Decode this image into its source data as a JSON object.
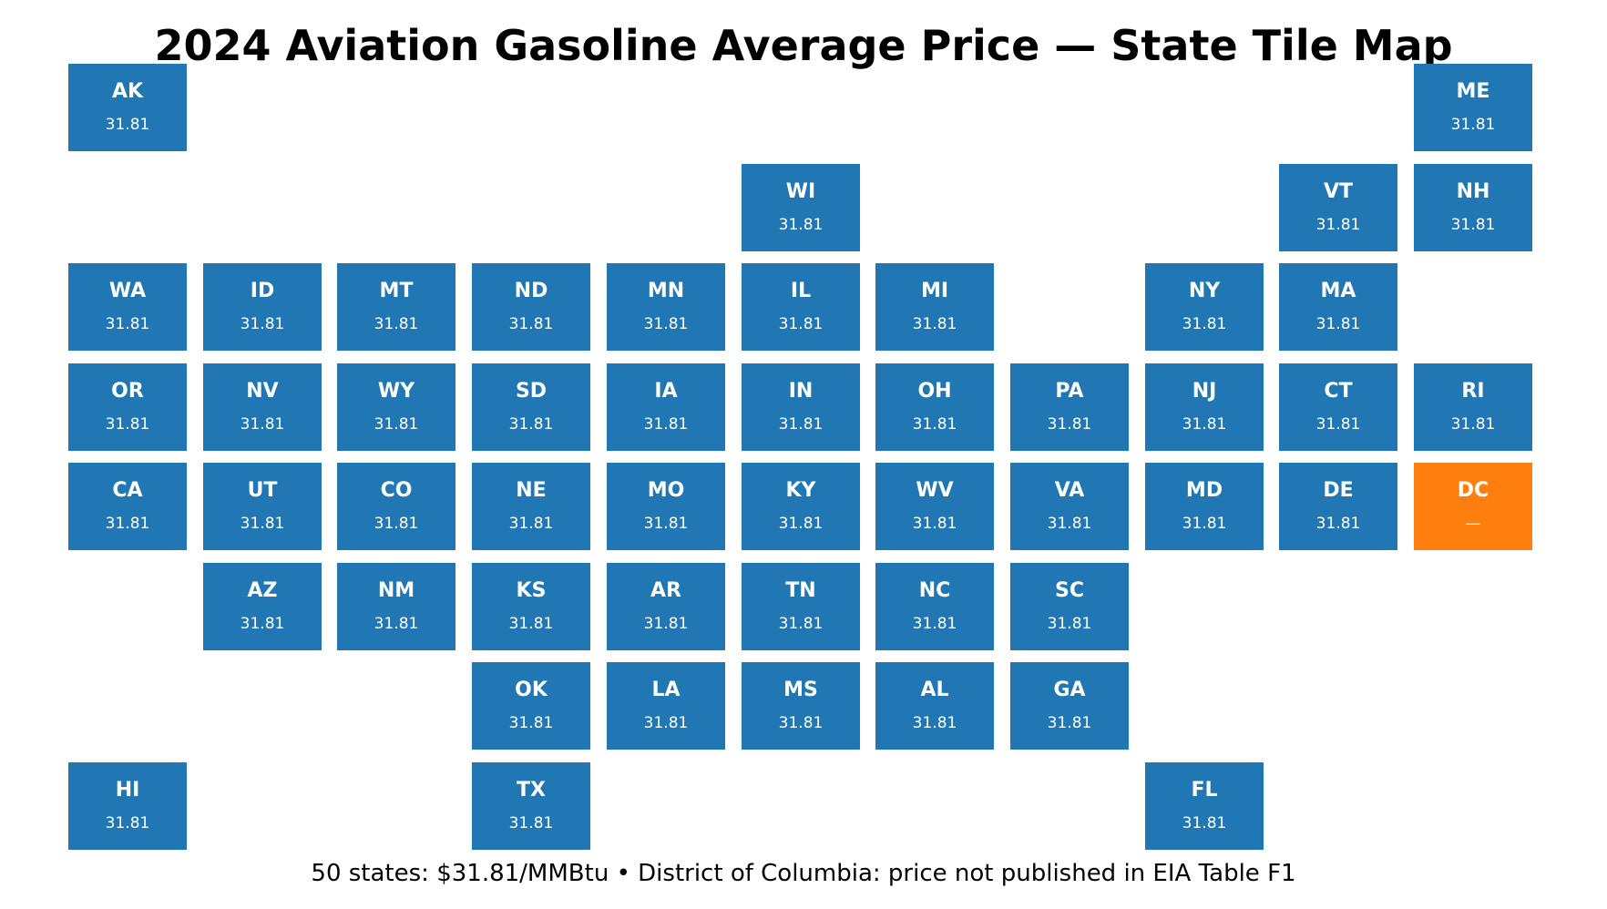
{
  "title": "2024 Aviation Gasoline Average Price — State Tile Map",
  "footnote": "50 states: $31.81/MMBtu  •  District of Columbia: price not published in EIA Table F1",
  "colors": {
    "published": "#2077b4",
    "not_published": "#ff7f0e"
  },
  "tiles": [
    {
      "abbr": "AK",
      "value": "31.81",
      "col": 0,
      "row": 0,
      "status": "published"
    },
    {
      "abbr": "ME",
      "value": "31.81",
      "col": 10,
      "row": 0,
      "status": "published"
    },
    {
      "abbr": "WI",
      "value": "31.81",
      "col": 5,
      "row": 1,
      "status": "published"
    },
    {
      "abbr": "VT",
      "value": "31.81",
      "col": 9,
      "row": 1,
      "status": "published"
    },
    {
      "abbr": "NH",
      "value": "31.81",
      "col": 10,
      "row": 1,
      "status": "published"
    },
    {
      "abbr": "WA",
      "value": "31.81",
      "col": 0,
      "row": 2,
      "status": "published"
    },
    {
      "abbr": "ID",
      "value": "31.81",
      "col": 1,
      "row": 2,
      "status": "published"
    },
    {
      "abbr": "MT",
      "value": "31.81",
      "col": 2,
      "row": 2,
      "status": "published"
    },
    {
      "abbr": "ND",
      "value": "31.81",
      "col": 3,
      "row": 2,
      "status": "published"
    },
    {
      "abbr": "MN",
      "value": "31.81",
      "col": 4,
      "row": 2,
      "status": "published"
    },
    {
      "abbr": "IL",
      "value": "31.81",
      "col": 5,
      "row": 2,
      "status": "published"
    },
    {
      "abbr": "MI",
      "value": "31.81",
      "col": 6,
      "row": 2,
      "status": "published"
    },
    {
      "abbr": "NY",
      "value": "31.81",
      "col": 8,
      "row": 2,
      "status": "published"
    },
    {
      "abbr": "MA",
      "value": "31.81",
      "col": 9,
      "row": 2,
      "status": "published"
    },
    {
      "abbr": "OR",
      "value": "31.81",
      "col": 0,
      "row": 3,
      "status": "published"
    },
    {
      "abbr": "NV",
      "value": "31.81",
      "col": 1,
      "row": 3,
      "status": "published"
    },
    {
      "abbr": "WY",
      "value": "31.81",
      "col": 2,
      "row": 3,
      "status": "published"
    },
    {
      "abbr": "SD",
      "value": "31.81",
      "col": 3,
      "row": 3,
      "status": "published"
    },
    {
      "abbr": "IA",
      "value": "31.81",
      "col": 4,
      "row": 3,
      "status": "published"
    },
    {
      "abbr": "IN",
      "value": "31.81",
      "col": 5,
      "row": 3,
      "status": "published"
    },
    {
      "abbr": "OH",
      "value": "31.81",
      "col": 6,
      "row": 3,
      "status": "published"
    },
    {
      "abbr": "PA",
      "value": "31.81",
      "col": 7,
      "row": 3,
      "status": "published"
    },
    {
      "abbr": "NJ",
      "value": "31.81",
      "col": 8,
      "row": 3,
      "status": "published"
    },
    {
      "abbr": "CT",
      "value": "31.81",
      "col": 9,
      "row": 3,
      "status": "published"
    },
    {
      "abbr": "RI",
      "value": "31.81",
      "col": 10,
      "row": 3,
      "status": "published"
    },
    {
      "abbr": "CA",
      "value": "31.81",
      "col": 0,
      "row": 4,
      "status": "published"
    },
    {
      "abbr": "UT",
      "value": "31.81",
      "col": 1,
      "row": 4,
      "status": "published"
    },
    {
      "abbr": "CO",
      "value": "31.81",
      "col": 2,
      "row": 4,
      "status": "published"
    },
    {
      "abbr": "NE",
      "value": "31.81",
      "col": 3,
      "row": 4,
      "status": "published"
    },
    {
      "abbr": "MO",
      "value": "31.81",
      "col": 4,
      "row": 4,
      "status": "published"
    },
    {
      "abbr": "KY",
      "value": "31.81",
      "col": 5,
      "row": 4,
      "status": "published"
    },
    {
      "abbr": "WV",
      "value": "31.81",
      "col": 6,
      "row": 4,
      "status": "published"
    },
    {
      "abbr": "VA",
      "value": "31.81",
      "col": 7,
      "row": 4,
      "status": "published"
    },
    {
      "abbr": "MD",
      "value": "31.81",
      "col": 8,
      "row": 4,
      "status": "published"
    },
    {
      "abbr": "DE",
      "value": "31.81",
      "col": 9,
      "row": 4,
      "status": "published"
    },
    {
      "abbr": "DC",
      "value": "—",
      "col": 10,
      "row": 4,
      "status": "not_published"
    },
    {
      "abbr": "AZ",
      "value": "31.81",
      "col": 1,
      "row": 5,
      "status": "published"
    },
    {
      "abbr": "NM",
      "value": "31.81",
      "col": 2,
      "row": 5,
      "status": "published"
    },
    {
      "abbr": "KS",
      "value": "31.81",
      "col": 3,
      "row": 5,
      "status": "published"
    },
    {
      "abbr": "AR",
      "value": "31.81",
      "col": 4,
      "row": 5,
      "status": "published"
    },
    {
      "abbr": "TN",
      "value": "31.81",
      "col": 5,
      "row": 5,
      "status": "published"
    },
    {
      "abbr": "NC",
      "value": "31.81",
      "col": 6,
      "row": 5,
      "status": "published"
    },
    {
      "abbr": "SC",
      "value": "31.81",
      "col": 7,
      "row": 5,
      "status": "published"
    },
    {
      "abbr": "OK",
      "value": "31.81",
      "col": 3,
      "row": 6,
      "status": "published"
    },
    {
      "abbr": "LA",
      "value": "31.81",
      "col": 4,
      "row": 6,
      "status": "published"
    },
    {
      "abbr": "MS",
      "value": "31.81",
      "col": 5,
      "row": 6,
      "status": "published"
    },
    {
      "abbr": "AL",
      "value": "31.81",
      "col": 6,
      "row": 6,
      "status": "published"
    },
    {
      "abbr": "GA",
      "value": "31.81",
      "col": 7,
      "row": 6,
      "status": "published"
    },
    {
      "abbr": "HI",
      "value": "31.81",
      "col": 0,
      "row": 7,
      "status": "published"
    },
    {
      "abbr": "TX",
      "value": "31.81",
      "col": 3,
      "row": 7,
      "status": "published"
    },
    {
      "abbr": "FL",
      "value": "31.81",
      "col": 8,
      "row": 7,
      "status": "published"
    }
  ]
}
